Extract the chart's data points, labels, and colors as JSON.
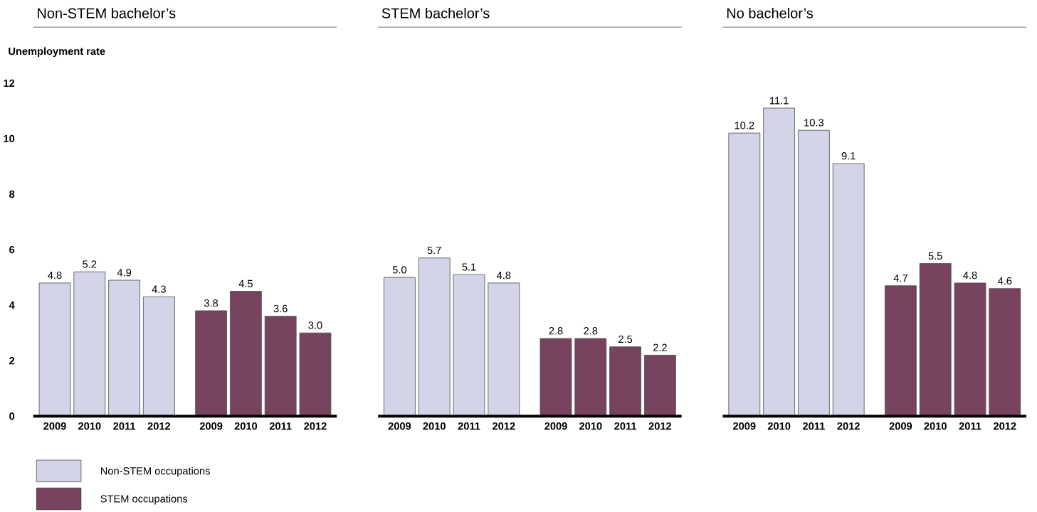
{
  "chart_data": [
    {
      "type": "bar",
      "title": "Non-STEM bachelor’s",
      "ylabel": "Unemployment rate",
      "categories": [
        "2009",
        "2010",
        "2011",
        "2012",
        "2009",
        "2010",
        "2011",
        "2012"
      ],
      "series": [
        {
          "name": "Non-STEM occupations",
          "color": "#d3d4e8",
          "values": [
            4.8,
            5.2,
            4.9,
            4.3,
            null,
            null,
            null,
            null
          ],
          "value_labels": [
            "4.8",
            "5.2",
            "4.9",
            "4.3",
            null,
            null,
            null,
            null
          ]
        },
        {
          "name": "STEM occupations",
          "color": "#77435f",
          "values": [
            null,
            null,
            null,
            null,
            3.8,
            4.5,
            3.6,
            3.0
          ],
          "value_labels": [
            null,
            null,
            null,
            null,
            "3.8",
            "4.5",
            "3.6",
            "3.0"
          ]
        }
      ],
      "ylim": [
        0,
        12
      ],
      "yticks": [
        0,
        2,
        4,
        6,
        8,
        10,
        12
      ],
      "legend": "bottom left",
      "grid": false
    },
    {
      "type": "bar",
      "title": "STEM bachelor’s",
      "categories": [
        "2009",
        "2010",
        "2011",
        "2012",
        "2009",
        "2010",
        "2011",
        "2012"
      ],
      "series": [
        {
          "color": "#d3d4e8",
          "values": [
            5.0,
            5.7,
            5.1,
            4.8,
            null,
            null,
            null,
            null
          ],
          "value_labels": [
            "5.0",
            "5.7",
            "5.1",
            "4.8",
            null,
            null,
            null,
            null
          ]
        },
        {
          "color": "#77435f",
          "values": [
            null,
            null,
            null,
            null,
            2.8,
            2.8,
            2.5,
            2.2
          ],
          "value_labels": [
            null,
            null,
            null,
            null,
            "2.8",
            "2.8",
            "2.5",
            "2.2"
          ]
        }
      ],
      "ylim": [
        0,
        12
      ],
      "yticks": [
        0,
        2,
        4,
        6,
        8,
        10,
        12
      ],
      "tick_labels": "x",
      "grid": false
    },
    {
      "type": "bar",
      "title": "No bachelor’s",
      "categories": [
        "2009",
        "2010",
        "2011",
        "2012",
        "2009",
        "2010",
        "2011",
        "2012"
      ],
      "series": [
        {
          "color": "#d3d4e8",
          "values": [
            10.2,
            11.1,
            10.3,
            9.1,
            null,
            null,
            null,
            null
          ],
          "value_labels": [
            "10.2",
            "11.1",
            "10.3",
            "9.1",
            null,
            null,
            null,
            null
          ]
        },
        {
          "color": "#77435f",
          "values": [
            null,
            null,
            null,
            null,
            4.7,
            5.5,
            4.8,
            4.6
          ],
          "value_labels": [
            null,
            null,
            null,
            null,
            "4.7",
            "5.5",
            "4.8",
            "4.6"
          ]
        }
      ],
      "ylim": [
        0,
        12
      ],
      "yticks": [
        0,
        2,
        4,
        6,
        8,
        10,
        12
      ],
      "tick_labels": "x",
      "grid": false
    }
  ]
}
